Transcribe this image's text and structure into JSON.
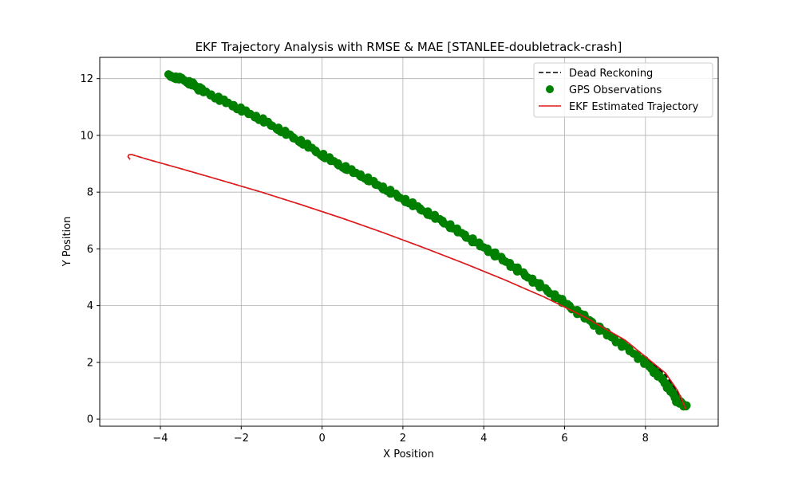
{
  "chart_data": {
    "type": "line",
    "title": "EKF Trajectory Analysis with RMSE & MAE [STANLEE-doubletrack-crash]",
    "xlabel": "X Position",
    "ylabel": "Y Position",
    "xlim": [
      -5.5,
      9.8
    ],
    "ylim": [
      -0.25,
      12.75
    ],
    "xticks": [
      -4,
      -2,
      0,
      2,
      4,
      6,
      8
    ],
    "yticks": [
      0,
      2,
      4,
      6,
      8,
      10,
      12
    ],
    "xtick_labels": [
      "−4",
      "−2",
      "0",
      "2",
      "4",
      "6",
      "8"
    ],
    "ytick_labels": [
      "0",
      "2",
      "4",
      "6",
      "8",
      "10",
      "12"
    ],
    "grid": true,
    "legend_position": "top-right",
    "series": [
      {
        "name": "Dead Reckoning",
        "kind": "line",
        "style": "dashed",
        "color": "#000000",
        "x": [
          -4.75,
          -4.8,
          -4.78,
          -4.7,
          -4.3,
          -3.5,
          -2.5,
          -1.5,
          -0.5,
          0.5,
          1.5,
          2.5,
          3.5,
          4.5,
          5.5,
          6.5,
          7.5,
          8.0,
          8.5,
          8.8,
          9.0
        ],
        "y": [
          9.15,
          9.25,
          9.32,
          9.32,
          9.15,
          8.83,
          8.42,
          8.0,
          7.55,
          7.08,
          6.58,
          6.05,
          5.5,
          4.92,
          4.3,
          3.6,
          2.78,
          2.2,
          1.55,
          0.95,
          0.35
        ]
      },
      {
        "name": "GPS Observations",
        "kind": "scatter",
        "color": "#008000",
        "x": [
          -3.8,
          -3.5,
          -3.2,
          -3.0,
          -2.5,
          -2.0,
          -1.5,
          -1.0,
          -0.5,
          0.0,
          0.5,
          1.0,
          1.5,
          2.0,
          2.5,
          3.0,
          3.5,
          4.0,
          4.5,
          5.0,
          5.5,
          6.0,
          6.5,
          7.0,
          7.5,
          8.0,
          8.3,
          8.6,
          8.8,
          9.0
        ],
        "y": [
          12.1,
          12.0,
          11.8,
          11.6,
          11.25,
          10.9,
          10.55,
          10.15,
          9.75,
          9.3,
          8.9,
          8.55,
          8.15,
          7.75,
          7.35,
          6.95,
          6.5,
          6.05,
          5.6,
          5.1,
          4.6,
          4.1,
          3.6,
          3.05,
          2.55,
          2.0,
          1.6,
          1.1,
          0.65,
          0.45
        ]
      },
      {
        "name": "EKF Estimated Trajectory",
        "kind": "line",
        "style": "solid",
        "color": "#e41a1c",
        "x": [
          -4.75,
          -4.8,
          -4.78,
          -4.7,
          -4.3,
          -3.5,
          -2.5,
          -1.5,
          -0.5,
          0.5,
          1.5,
          2.5,
          3.5,
          4.5,
          5.5,
          6.5,
          7.5,
          8.0,
          8.5,
          8.8,
          9.0
        ],
        "y": [
          9.15,
          9.25,
          9.32,
          9.32,
          9.15,
          8.83,
          8.42,
          8.0,
          7.55,
          7.08,
          6.58,
          6.05,
          5.5,
          4.92,
          4.3,
          3.6,
          2.78,
          2.2,
          1.62,
          1.0,
          0.35
        ]
      }
    ]
  }
}
